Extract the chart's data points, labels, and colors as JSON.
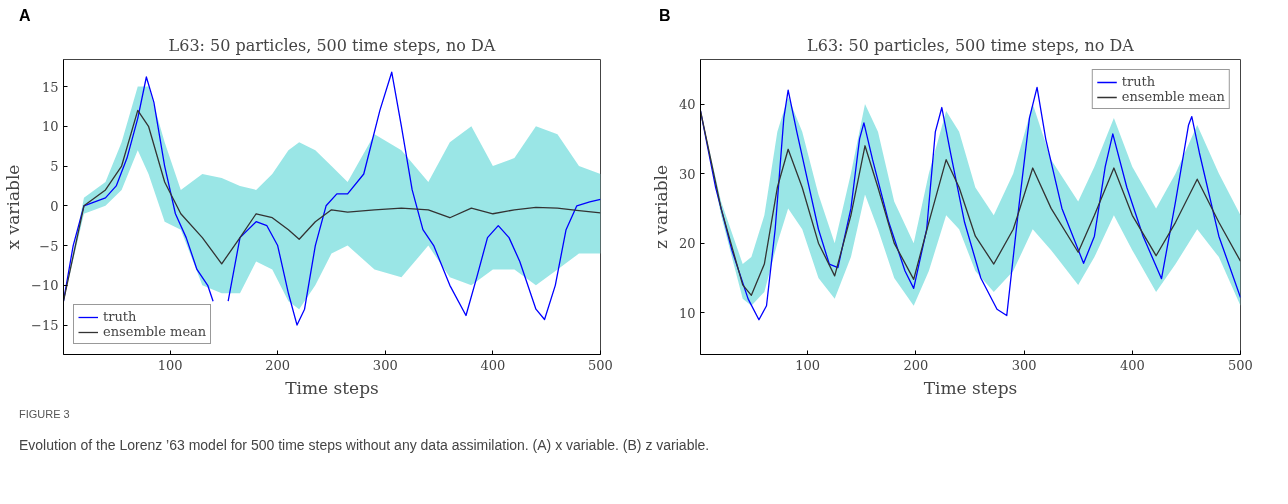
{
  "chart_data": [
    {
      "type": "line",
      "title": "L63: 50 particles, 500 time steps, no DA",
      "xlabel": "Time steps",
      "ylabel": "x variable",
      "annotations": [
        "A"
      ],
      "xlim": [
        1,
        500
      ],
      "ylim": [
        -18.7,
        18.4
      ],
      "xticks": [
        100,
        200,
        300,
        400,
        500
      ],
      "yticks": [
        {
          "value": -15,
          "label": "−15"
        },
        {
          "value": -10,
          "label": "−10"
        },
        {
          "value": -5,
          "label": "−5"
        },
        0,
        5,
        10,
        15
      ],
      "grid": false,
      "legend": "bottom left",
      "marker": "none",
      "line_style": "solid",
      "series": [
        {
          "name": "truth",
          "color": "#0000ff",
          "x": [
            1,
            10,
            20,
            30,
            40,
            50,
            60,
            70,
            78,
            85,
            95,
            105,
            115,
            125,
            135,
            140,
            147,
            154,
            165,
            180,
            190,
            200,
            210,
            218,
            225,
            235,
            245,
            255,
            265,
            280,
            295,
            306,
            315,
            325,
            335,
            345,
            360,
            375,
            385,
            395,
            405,
            415,
            425,
            440,
            448,
            458,
            468,
            478,
            490,
            500
          ],
          "values": [
            -12,
            -5,
            0,
            0.5,
            1,
            2.5,
            6,
            11,
            16.2,
            13,
            5,
            -1,
            -4,
            -8,
            -10,
            -12,
            null,
            -12,
            -4,
            -2,
            -2.5,
            -5,
            -11,
            -15,
            -13,
            -5,
            0,
            1.5,
            1.5,
            4,
            12,
            16.8,
            10,
            2,
            -3,
            -5,
            -10,
            -13.8,
            -9,
            -4,
            -2.5,
            -4,
            -7,
            -13,
            -14.3,
            -10,
            -3,
            0,
            0.5,
            0.8
          ]
        },
        {
          "name": "ensemble mean",
          "color": "#333333",
          "x": [
            1,
            20,
            40,
            55,
            70,
            80,
            95,
            110,
            130,
            148,
            165,
            180,
            195,
            210,
            220,
            235,
            250,
            265,
            290,
            315,
            340,
            360,
            380,
            400,
            420,
            440,
            460,
            480,
            500
          ],
          "values": [
            -12,
            0,
            2,
            5,
            12,
            10,
            3,
            -1,
            -4,
            -7.3,
            -4,
            -1,
            -1.5,
            -3,
            -4.2,
            -2,
            -0.5,
            -0.8,
            -0.5,
            -0.3,
            -0.5,
            -1.5,
            -0.3,
            -1,
            -0.5,
            -0.2,
            -0.3,
            -0.6,
            -0.9
          ],
          "lower": [
            -12,
            -1,
            0,
            2,
            7,
            4,
            -2,
            -3,
            -10,
            -11,
            -11,
            -7,
            -8,
            -12,
            -13,
            -10,
            -6,
            -5,
            -8,
            -9,
            -5,
            -9,
            -10,
            -8,
            -8,
            -10,
            -8,
            -6,
            -6
          ],
          "upper": [
            -12,
            1,
            3,
            8,
            15,
            15,
            8,
            2,
            4,
            3.5,
            2.5,
            2,
            4,
            7,
            8,
            7,
            5,
            3,
            9,
            7,
            3,
            8,
            10,
            5,
            6,
            10,
            9,
            5,
            4
          ]
        }
      ]
    },
    {
      "type": "line",
      "title": "L63: 50 particles, 500 time steps, no DA",
      "xlabel": "Time steps",
      "ylabel": "z variable",
      "annotations": [
        "B",
        "FIGURE 3",
        "Evolution of the Lorenz ’63 model for 500 time steps without any data assimilation. (A) x variable. (B) z variable."
      ],
      "xlim": [
        1,
        500
      ],
      "ylim": [
        4,
        46.4
      ],
      "xticks": [
        100,
        200,
        300,
        400,
        500
      ],
      "yticks": [
        10,
        20,
        30,
        40
      ],
      "grid": false,
      "legend": "top right",
      "marker": "none",
      "line_style": "solid",
      "series": [
        {
          "name": "truth",
          "color": "#0000ff",
          "x": [
            1,
            15,
            30,
            45,
            55,
            62,
            70,
            78,
            82,
            90,
            100,
            110,
            120,
            128,
            140,
            148,
            152,
            160,
            175,
            190,
            198,
            210,
            218,
            224,
            232,
            245,
            260,
            275,
            284,
            295,
            305,
            312,
            320,
            335,
            355,
            365,
            375,
            382,
            395,
            410,
            427,
            440,
            452,
            455,
            462,
            480,
            500
          ],
          "values": [
            39,
            28,
            19,
            12,
            9,
            11,
            22,
            38,
            42,
            36,
            29,
            22,
            17,
            16.5,
            25,
            35,
            37.3,
            32,
            23,
            16,
            13.5,
            22,
            36,
            39.5,
            33,
            23,
            15,
            10.5,
            9.6,
            25,
            38,
            42.4,
            35,
            25,
            17.1,
            21,
            31,
            35.7,
            28,
            21,
            14.9,
            26,
            37,
            38.2,
            33,
            21,
            12.2
          ]
        },
        {
          "name": "ensemble mean",
          "color": "#333333",
          "x": [
            1,
            20,
            40,
            48,
            60,
            72,
            82,
            95,
            110,
            125,
            140,
            153,
            165,
            180,
            198,
            212,
            228,
            240,
            255,
            272,
            290,
            308,
            325,
            350,
            365,
            383,
            400,
            422,
            440,
            460,
            480,
            500
          ],
          "values": [
            39,
            25,
            14,
            12.5,
            17,
            28,
            33.5,
            28,
            20,
            15.3,
            24,
            34,
            28,
            20,
            14.8,
            23,
            32,
            28,
            21,
            17,
            22,
            30.8,
            25,
            18.7,
            24,
            30.8,
            24,
            18.2,
            23,
            29.2,
            23,
            17.4
          ],
          "lower": [
            39,
            24,
            12,
            11,
            13,
            20,
            25,
            22,
            15,
            12,
            18,
            27,
            22,
            15,
            11,
            16,
            24,
            22,
            16,
            13,
            16,
            22,
            19,
            14,
            18,
            24,
            19,
            13,
            17,
            22,
            18,
            11
          ],
          "upper": [
            39,
            26,
            17,
            18,
            24,
            36,
            41,
            36,
            27,
            20,
            30,
            40,
            36,
            26,
            20,
            30,
            39,
            36,
            28,
            24,
            30,
            40,
            32,
            26,
            31,
            38,
            31,
            25,
            30,
            37,
            30,
            24
          ]
        }
      ]
    }
  ]
}
